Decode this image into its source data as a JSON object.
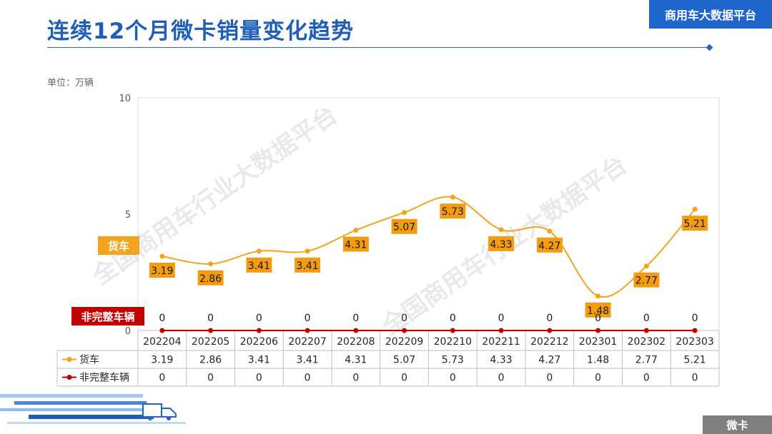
{
  "header": {
    "title": "连续12个月微卡销量变化趋势",
    "brand": "商用车大数据平台"
  },
  "unit_label": "单位：万辆",
  "footer_badge": "微卡",
  "watermark": "全国商用车行业大数据平台",
  "colors": {
    "title": "#1f5fb8",
    "brand_bg": "#1f66cc",
    "truck": "#f5a21c",
    "incomplete": "#c00000",
    "grid": "#d9d9d9"
  },
  "chart_data": {
    "type": "line",
    "categories": [
      "202204",
      "202205",
      "202206",
      "202207",
      "202208",
      "202209",
      "202210",
      "202211",
      "202212",
      "202301",
      "202302",
      "202303"
    ],
    "series": [
      {
        "name": "货车",
        "values": [
          3.19,
          2.86,
          3.41,
          3.41,
          4.31,
          5.07,
          5.73,
          4.33,
          4.27,
          1.48,
          2.77,
          5.21
        ],
        "color": "#f5a21c"
      },
      {
        "name": "非完整车辆",
        "values": [
          0,
          0,
          0,
          0,
          0,
          0,
          0,
          0,
          0,
          0,
          0,
          0
        ],
        "color": "#c00000"
      }
    ],
    "yticks": [
      0,
      5,
      10
    ],
    "ylim": [
      0,
      10
    ],
    "data_table": true,
    "grid": false,
    "legend": "data-table"
  }
}
